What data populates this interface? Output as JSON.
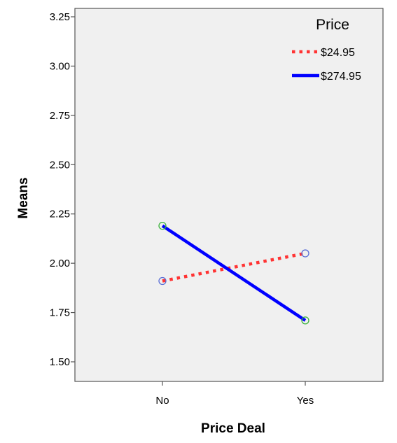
{
  "chart_data": {
    "type": "line",
    "categories": [
      "No",
      "Yes"
    ],
    "xlabel": "Price Deal",
    "ylabel": "Means",
    "ylim": [
      1.45,
      3.27
    ],
    "yticks": [
      1.5,
      1.75,
      2.0,
      2.25,
      2.5,
      2.75,
      3.0,
      3.25
    ],
    "ytick_labels": [
      "1.50",
      "1.75",
      "2.00",
      "2.25",
      "2.50",
      "2.75",
      "3.00",
      "3.25"
    ],
    "grid": false,
    "background": "#f0f0f0",
    "legend": {
      "title": "Price",
      "position": "top-right"
    },
    "series": [
      {
        "name": "$24.95",
        "values": [
          1.91,
          2.05
        ],
        "color": "#ff3333",
        "style": "dotted",
        "marker_color": "#5b6fd6"
      },
      {
        "name": "$274.95",
        "values": [
          2.19,
          1.71
        ],
        "color": "#0000ff",
        "style": "solid",
        "marker_color": "#3db33d"
      }
    ]
  }
}
